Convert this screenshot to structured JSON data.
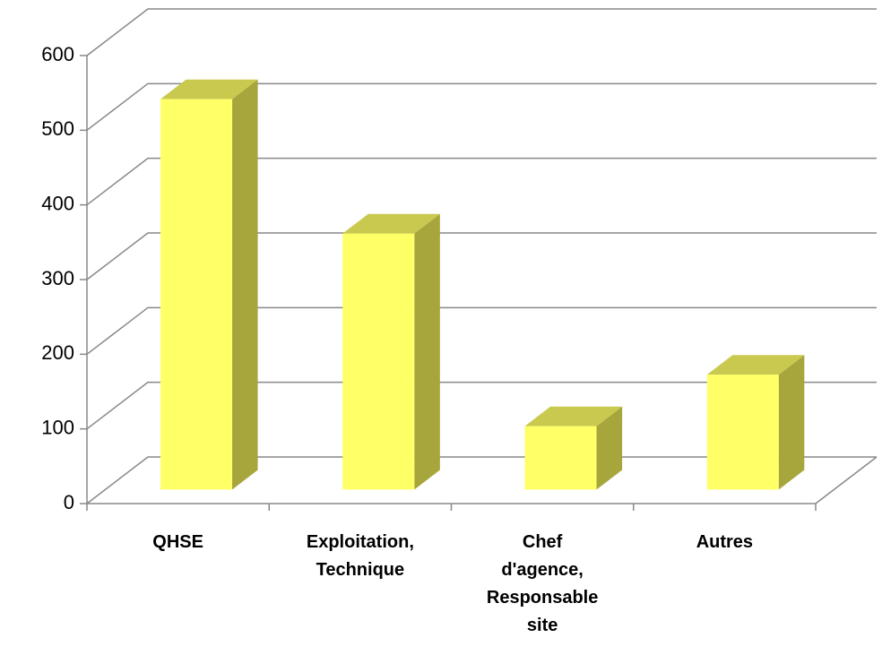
{
  "chart_data": {
    "type": "bar3d",
    "categories": [
      "QHSE",
      "Exploitation, Technique",
      "Chef d'agence, Responsable site",
      "Autres"
    ],
    "values": [
      523,
      343,
      85,
      154
    ],
    "colors": {
      "front": "#ffff66",
      "side": "#a6a63c",
      "top": "#c9c94f"
    },
    "ylim": [
      0,
      600
    ],
    "yticks": [
      0,
      100,
      200,
      300,
      400,
      500,
      600
    ],
    "grid": true
  }
}
